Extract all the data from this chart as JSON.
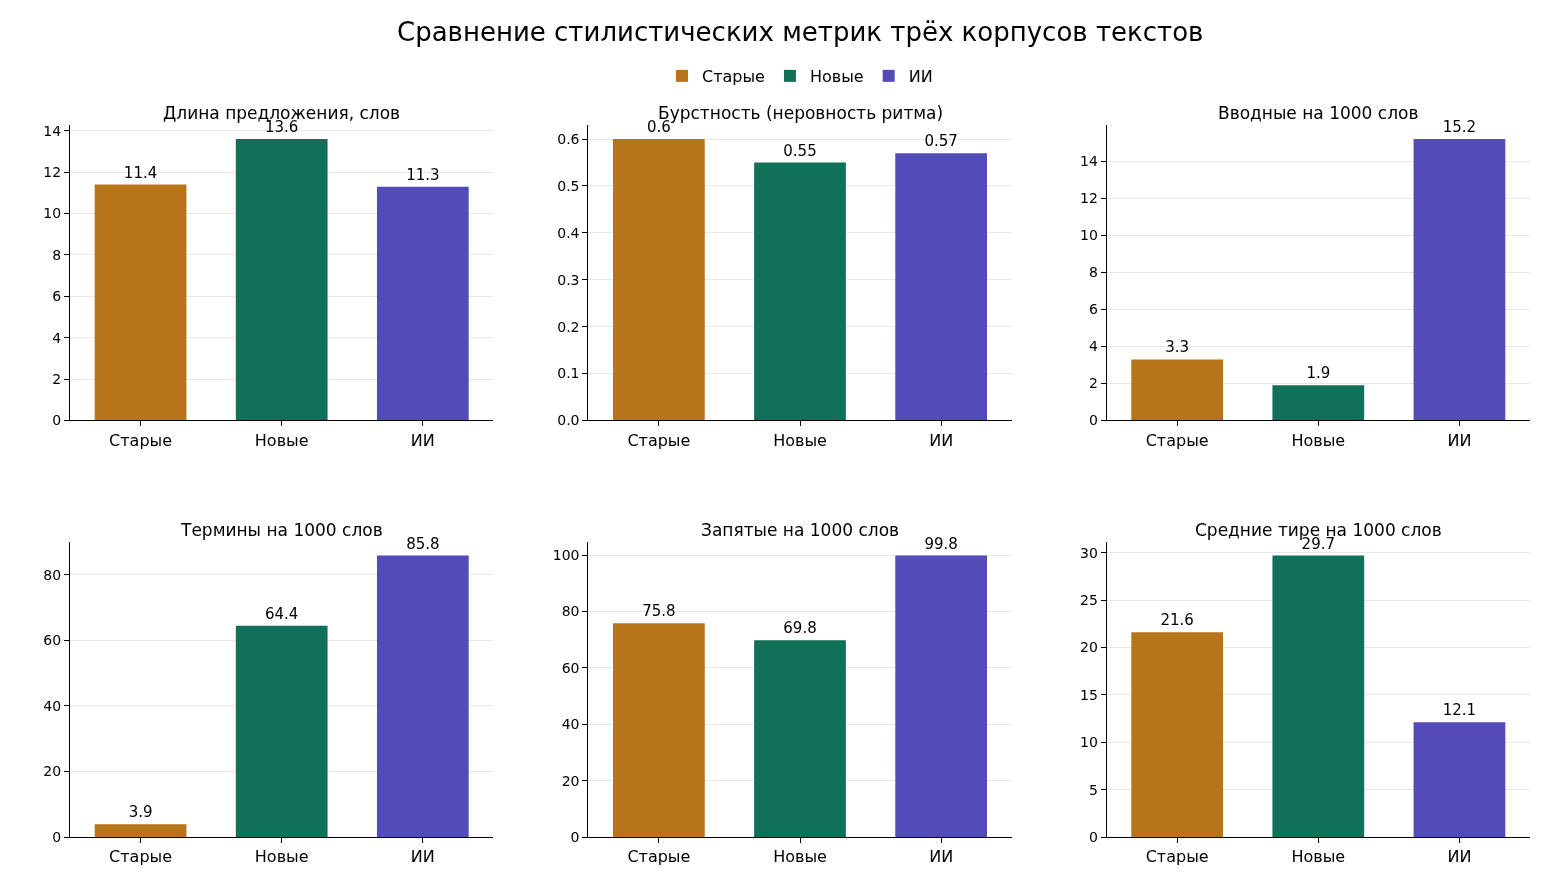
{
  "chart_data": [
    {
      "type": "bar",
      "title": "Длина предложения, слов",
      "annotations": [
        "Сравнение стилистических метрик трёх корпусов текстов"
      ],
      "legend": "top",
      "categories": [
        "Старые",
        "Новые",
        "ИИ"
      ],
      "series": [
        {
          "name": "Старые",
          "color": "#b87418",
          "values": [
            11.4,
            null,
            null
          ]
        },
        {
          "name": "Новые",
          "color": "#107058",
          "values": [
            null,
            13.6,
            null
          ]
        },
        {
          "name": "ИИ",
          "color": "#534bb8",
          "values": [
            null,
            null,
            11.3
          ]
        }
      ],
      "ylim": [
        0,
        14.28
      ],
      "yticks": [
        0,
        2,
        4,
        6,
        8,
        10,
        12,
        14
      ],
      "grid": "y",
      "data_labels": true
    },
    {
      "type": "bar",
      "title": "Бурстность (неровность ритма)",
      "categories": [
        "Старые",
        "Новые",
        "ИИ"
      ],
      "series": [
        {
          "color": "#b87418",
          "values": [
            0.6,
            null,
            null
          ]
        },
        {
          "color": "#107058",
          "values": [
            null,
            0.55,
            null
          ]
        },
        {
          "color": "#534bb8",
          "values": [
            null,
            null,
            0.57
          ]
        }
      ],
      "ylim": [
        0,
        0.63
      ],
      "yticks": [
        {
          "value": 0,
          "label": "0.0"
        },
        0.1,
        0.2,
        0.3,
        0.4,
        0.5,
        0.6
      ],
      "grid": "y",
      "data_labels": true
    },
    {
      "type": "bar",
      "title": "Вводные на 1000 слов",
      "categories": [
        "Старые",
        "Новые",
        "ИИ"
      ],
      "series": [
        {
          "color": "#b87418",
          "values": [
            3.3,
            null,
            null
          ]
        },
        {
          "color": "#107058",
          "values": [
            null,
            1.9,
            null
          ]
        },
        {
          "color": "#534bb8",
          "values": [
            null,
            null,
            15.2
          ]
        }
      ],
      "ylim": [
        0,
        15.96
      ],
      "yticks": [
        0,
        2,
        4,
        6,
        8,
        10,
        12,
        14
      ],
      "grid": "y",
      "data_labels": true
    },
    {
      "type": "bar",
      "title": "Термины на 1000 слов",
      "categories": [
        "Старые",
        "Новые",
        "ИИ"
      ],
      "series": [
        {
          "color": "#b87418",
          "values": [
            3.9,
            null,
            null
          ]
        },
        {
          "color": "#107058",
          "values": [
            null,
            64.4,
            null
          ]
        },
        {
          "color": "#534bb8",
          "values": [
            null,
            null,
            85.8
          ]
        }
      ],
      "ylim": [
        0,
        90.09
      ],
      "yticks": [
        0,
        20,
        40,
        60,
        80
      ],
      "grid": "y",
      "data_labels": true
    },
    {
      "type": "bar",
      "title": "Запятые на 1000 слов",
      "categories": [
        "Старые",
        "Новые",
        "ИИ"
      ],
      "series": [
        {
          "color": "#b87418",
          "values": [
            75.8,
            null,
            null
          ]
        },
        {
          "color": "#107058",
          "values": [
            null,
            69.8,
            null
          ]
        },
        {
          "color": "#534bb8",
          "values": [
            null,
            null,
            99.8
          ]
        }
      ],
      "ylim": [
        0,
        104.79
      ],
      "yticks": [
        0,
        20,
        40,
        60,
        80,
        100
      ],
      "grid": "y",
      "data_labels": true
    },
    {
      "type": "bar",
      "title": "Средние тире на 1000 слов",
      "categories": [
        "Старые",
        "Новые",
        "ИИ"
      ],
      "series": [
        {
          "color": "#b87418",
          "values": [
            21.6,
            null,
            null
          ]
        },
        {
          "color": "#107058",
          "values": [
            null,
            29.7,
            null
          ]
        },
        {
          "color": "#534bb8",
          "values": [
            null,
            null,
            12.1
          ]
        }
      ],
      "ylim": [
        0,
        31.185
      ],
      "yticks": [
        0,
        5,
        10,
        15,
        20,
        25,
        30
      ],
      "grid": "y",
      "data_labels": true
    }
  ]
}
